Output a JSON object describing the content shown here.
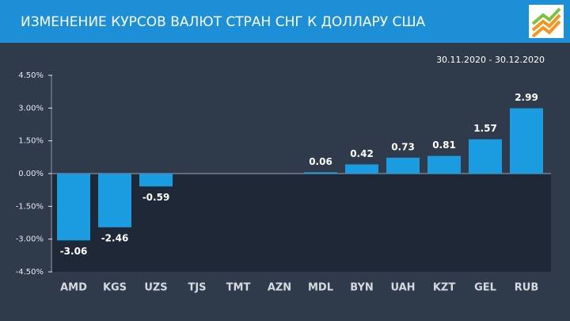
{
  "chart_data": {
    "type": "bar",
    "title": "ИЗМЕНЕНИЕ КУРСОВ ВАЛЮТ СТРАН СНГ К ДОЛЛАРУ США",
    "subtitle": "30.11.2020  - 30.12.2020",
    "categories": [
      "AMD",
      "KGS",
      "UZS",
      "TJS",
      "TMT",
      "AZN",
      "MDL",
      "BYN",
      "UAH",
      "KZT",
      "GEL",
      "RUB"
    ],
    "values": [
      -3.06,
      -2.46,
      -0.59,
      null,
      null,
      null,
      0.06,
      0.42,
      0.73,
      0.81,
      1.57,
      2.99
    ],
    "color": "#1b9be0",
    "ylim": [
      -4.5,
      4.5
    ],
    "yticks": [
      {
        "value": 4.5,
        "label": "4.50%"
      },
      {
        "value": 3,
        "label": "3.00%"
      },
      {
        "value": 1.5,
        "label": "1.50%"
      },
      {
        "value": 0,
        "label": "0.00%"
      },
      {
        "value": -1.5,
        "label": "-1.50%"
      },
      {
        "value": -3,
        "label": "-3.00%"
      },
      {
        "value": -4.5,
        "label": "-4.50%"
      }
    ],
    "grid": false
  }
}
